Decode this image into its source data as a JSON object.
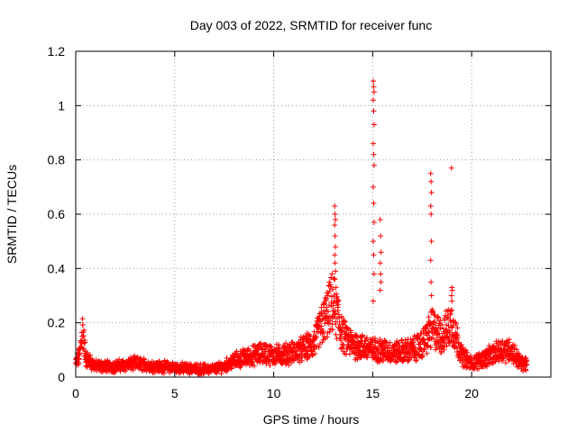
{
  "chart_data": {
    "type": "scatter",
    "title": "Day 003 of 2022, SRMTID for receiver func",
    "xlabel": "GPS time / hours",
    "ylabel": "SRMTID / TECUs",
    "xlim": [
      0,
      24
    ],
    "ylim": [
      0,
      1.2
    ],
    "x_ticks": [
      0,
      5,
      10,
      15,
      20
    ],
    "x_tick_labels": [
      "0",
      "5",
      "10",
      "15",
      "20"
    ],
    "y_ticks": [
      0,
      0.2,
      0.4,
      0.6,
      0.8,
      1.0,
      1.2
    ],
    "y_tick_labels": [
      "0",
      "0.2",
      "0.4",
      "0.6",
      "0.8",
      "1",
      "1.2"
    ],
    "grid": true,
    "marker": "plus",
    "color": "#ff0000",
    "series": [
      {
        "name": "SRMTID",
        "profile_hours": [
          0,
          0.2,
          0.35,
          0.5,
          1,
          2,
          3,
          4,
          5,
          6,
          7,
          7.5,
          8,
          9,
          9.5,
          10,
          11,
          12,
          12.5,
          13,
          13.5,
          14,
          15,
          15.5,
          16,
          17,
          17.5,
          18,
          18.5,
          19,
          19.5,
          20,
          21,
          21.5,
          22,
          22.5,
          22.8
        ],
        "profile_values": [
          0.05,
          0.08,
          0.18,
          0.07,
          0.04,
          0.04,
          0.05,
          0.04,
          0.035,
          0.03,
          0.03,
          0.04,
          0.06,
          0.08,
          0.09,
          0.08,
          0.09,
          0.12,
          0.2,
          0.28,
          0.15,
          0.12,
          0.1,
          0.1,
          0.09,
          0.1,
          0.12,
          0.18,
          0.15,
          0.2,
          0.08,
          0.05,
          0.08,
          0.1,
          0.1,
          0.05,
          0.05
        ],
        "spikes": [
          {
            "hour": 13.1,
            "values": [
              0.63,
              0.6,
              0.58,
              0.56,
              0.52,
              0.48,
              0.45,
              0.42,
              0.39,
              0.36
            ]
          },
          {
            "hour": 15.05,
            "values": [
              1.09,
              1.07,
              1.05,
              1.02,
              0.98,
              0.93,
              0.86,
              0.82,
              0.78,
              0.7,
              0.64,
              0.57,
              0.5,
              0.45,
              0.38,
              0.28
            ]
          },
          {
            "hour": 15.4,
            "values": [
              0.58,
              0.52,
              0.46,
              0.42,
              0.38,
              0.35,
              0.32
            ]
          },
          {
            "hour": 17.95,
            "values": [
              0.75,
              0.72,
              0.68,
              0.63,
              0.6,
              0.5,
              0.43,
              0.35,
              0.3
            ]
          },
          {
            "hour": 19.0,
            "values": [
              0.77,
              0.33,
              0.32,
              0.3,
              0.28
            ]
          }
        ]
      }
    ]
  }
}
